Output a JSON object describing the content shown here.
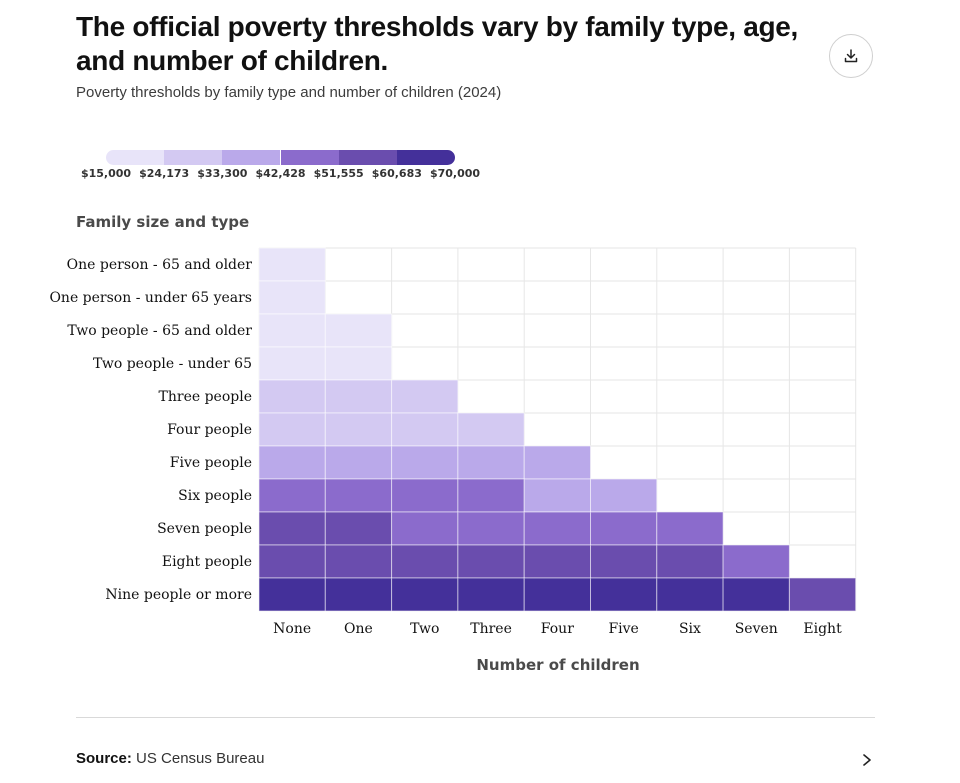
{
  "header": {
    "title": "The official poverty thresholds vary by family type, age, and number of children.",
    "subtitle": "Poverty thresholds by family type and number of children (2024)",
    "download_icon": "download-icon"
  },
  "legend": {
    "breaks": [
      "$15,000",
      "$24,173",
      "$33,300",
      "$42,428",
      "$51,555",
      "$60,683",
      "$70,000"
    ],
    "colors": [
      "#e8e4f9",
      "#d3c9f2",
      "#baa9ea",
      "#8b6bcc",
      "#6a4dae",
      "#44309a"
    ]
  },
  "chart_data": {
    "type": "heatmap",
    "title": "Poverty thresholds by family type and number of children (2024)",
    "ylabel": "Family size and type",
    "xlabel": "Number of children",
    "rows": [
      "One person - 65 and older",
      "One person - under 65 years",
      "Two people - 65 and older",
      "Two people - under 65",
      "Three people",
      "Four people",
      "Five people",
      "Six people",
      "Seven people",
      "Eight people",
      "Nine people or more"
    ],
    "columns": [
      "None",
      "One",
      "Two",
      "Three",
      "Four",
      "Five",
      "Six",
      "Seven",
      "Eight"
    ],
    "color_bins": [
      [
        0,
        null,
        null,
        null,
        null,
        null,
        null,
        null,
        null
      ],
      [
        0,
        null,
        null,
        null,
        null,
        null,
        null,
        null,
        null
      ],
      [
        0,
        0,
        null,
        null,
        null,
        null,
        null,
        null,
        null
      ],
      [
        0,
        0,
        null,
        null,
        null,
        null,
        null,
        null,
        null
      ],
      [
        1,
        1,
        1,
        null,
        null,
        null,
        null,
        null,
        null
      ],
      [
        1,
        1,
        1,
        1,
        null,
        null,
        null,
        null,
        null
      ],
      [
        2,
        2,
        2,
        2,
        2,
        null,
        null,
        null,
        null
      ],
      [
        3,
        3,
        3,
        3,
        2,
        2,
        null,
        null,
        null
      ],
      [
        4,
        4,
        3,
        3,
        3,
        3,
        3,
        null,
        null
      ],
      [
        4,
        4,
        4,
        4,
        4,
        4,
        4,
        3,
        null
      ],
      [
        5,
        5,
        5,
        5,
        5,
        5,
        5,
        5,
        4
      ]
    ],
    "bin_ranges": [
      [
        "$15,000",
        "$24,173"
      ],
      [
        "$24,173",
        "$33,300"
      ],
      [
        "$33,300",
        "$42,428"
      ],
      [
        "$42,428",
        "$51,555"
      ],
      [
        "$51,555",
        "$60,683"
      ],
      [
        "$60,683",
        "$70,000"
      ]
    ]
  },
  "footer": {
    "source_label": "Source:",
    "source_value": "US Census Bureau",
    "chevron_icon": "chevron-right-icon"
  }
}
